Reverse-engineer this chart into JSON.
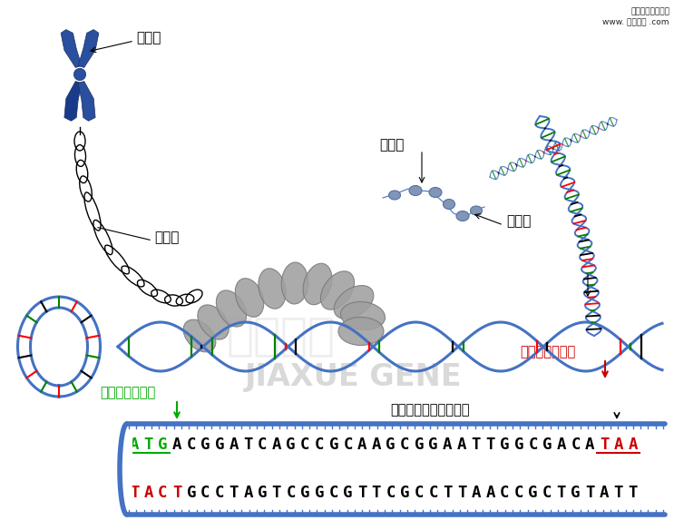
{
  "bg_color": "#ffffff",
  "watermark_line1": "佳学基因解码图例",
  "watermark_line2": "www. 基因解码 .com",
  "label_chromosome": "染色体",
  "label_chromatin": "染色质",
  "label_histone": "组蛋白",
  "label_nucleosome": "核小体",
  "label_start_synthesis": "开始合成蛋白质",
  "label_end_synthesis": "蛋白质合成结束",
  "label_complement": "互补配对的碱基因序列",
  "seq1": "ATGACGGATCAGCCGCAAGCGGAATTGGCGACATAA",
  "seq2": "TACTGCCTAGTCGGCGTTCGCCTTAACCGCTGTATT",
  "strand_color": "#4472c4",
  "helix_color": "#4472c4",
  "figure_width": 7.43,
  "figure_height": 5.84,
  "dpi": 100
}
